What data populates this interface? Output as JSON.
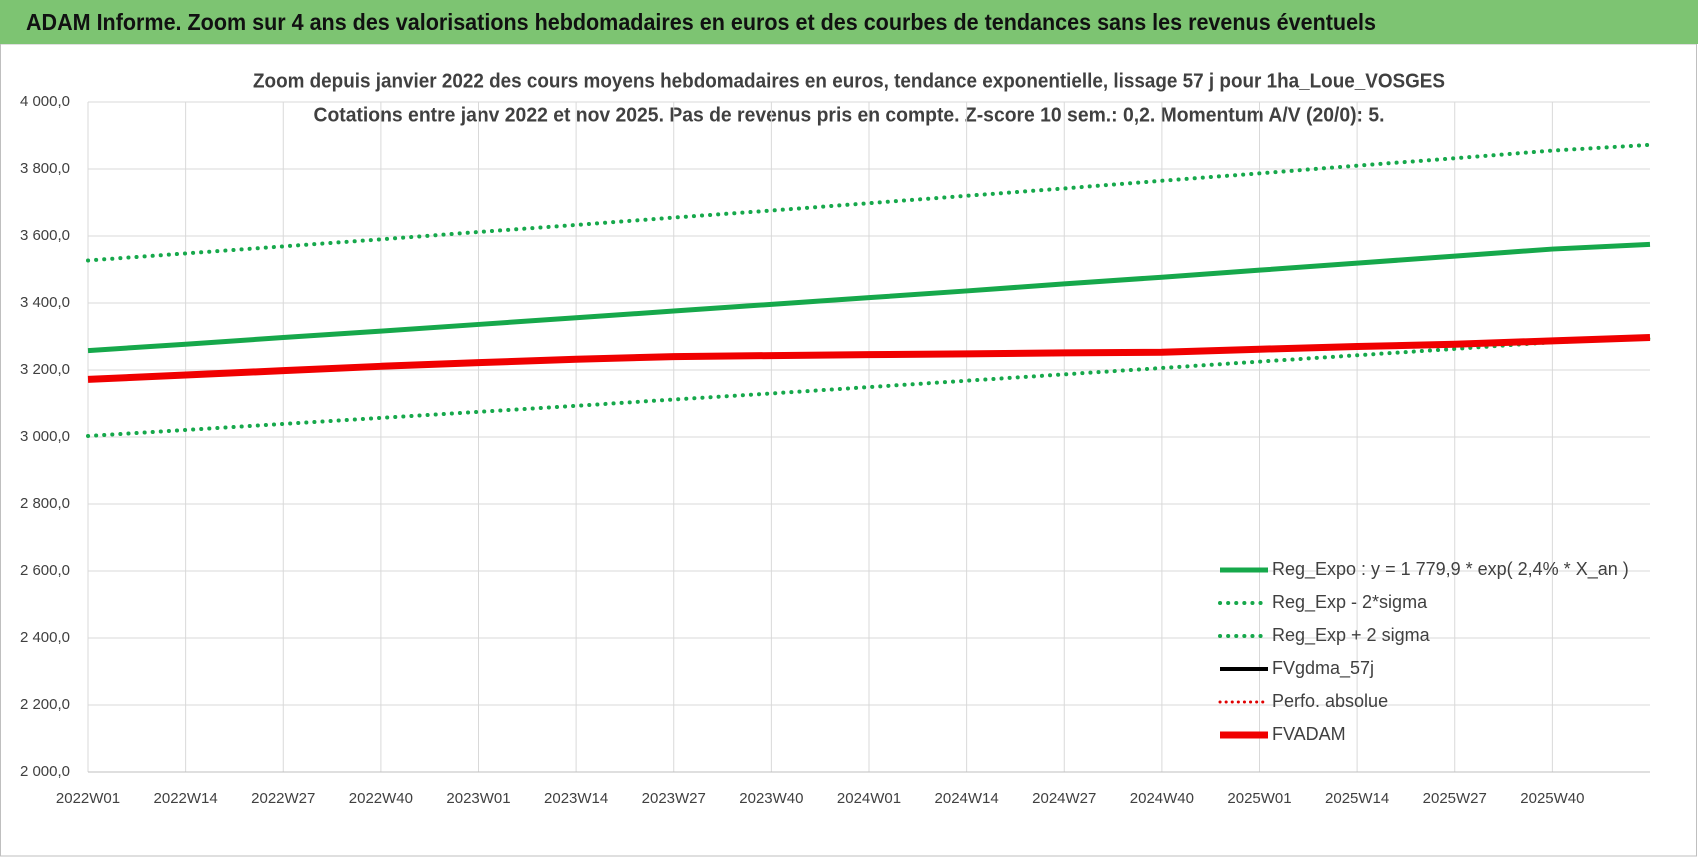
{
  "header": {
    "title": "ADAM Informe. Zoom sur 4 ans des valorisations hebdomadaires en euros et des courbes de tendances sans les revenus éventuels"
  },
  "chart_data": {
    "type": "line",
    "title": "Zoom depuis janvier 2022 des cours moyens hebdomadaires en euros, tendance exponentielle, lissage 57 j pour 1ha_Loue_VOSGES",
    "subtitle": "Cotations entre janv 2022 et nov 2025. Pas de revenus pris en compte. Z-score 10 sem.: 0,2. Momentum A/V (20/0): 5.",
    "categories": [
      "2022W01",
      "2022W14",
      "2022W27",
      "2022W40",
      "2023W01",
      "2023W14",
      "2023W27",
      "2023W40",
      "2024W01",
      "2024W14",
      "2024W27",
      "2024W40",
      "2025W01",
      "2025W14",
      "2025W27",
      "2025W40",
      null
    ],
    "ylim": [
      2000,
      4000
    ],
    "yticks": [
      {
        "value": 2000,
        "label": "2 000,0"
      },
      {
        "value": 2200,
        "label": "2 200,0"
      },
      {
        "value": 2400,
        "label": "2 400,0"
      },
      {
        "value": 2600,
        "label": "2 600,0"
      },
      {
        "value": 2800,
        "label": "2 800,0"
      },
      {
        "value": 3000,
        "label": "3 000,0"
      },
      {
        "value": 3200,
        "label": "3 200,0"
      },
      {
        "value": 3400,
        "label": "3 400,0"
      },
      {
        "value": 3600,
        "label": "3 600,0"
      },
      {
        "value": 3800,
        "label": "3 800,0"
      },
      {
        "value": 4000,
        "label": "4 000,0"
      }
    ],
    "grid": true,
    "legend": "bottom-right",
    "series": [
      {
        "name": "Reg_Expo : y = 1 779,9 * exp( 2,4% *  X_an )",
        "color": "#16a84b",
        "style": "solid",
        "width": 5,
        "values": [
          3258,
          3277,
          3297,
          3316,
          3336,
          3356,
          3376,
          3396,
          3416,
          3436,
          3457,
          3477,
          3498,
          3519,
          3540,
          3561,
          3575
        ]
      },
      {
        "name": "Reg_Exp - 2*sigma",
        "color": "#16a84b",
        "style": "dotted",
        "width": 4,
        "values": [
          3003,
          3021,
          3039,
          3057,
          3075,
          3093,
          3112,
          3130,
          3149,
          3168,
          3187,
          3206,
          3225,
          3244,
          3263,
          3283,
          3294
        ]
      },
      {
        "name": "Reg_Exp + 2 sigma",
        "color": "#16a84b",
        "style": "dotted",
        "width": 4,
        "values": [
          3527,
          3548,
          3569,
          3590,
          3612,
          3633,
          3655,
          3676,
          3698,
          3720,
          3742,
          3765,
          3787,
          3810,
          3832,
          3855,
          3872
        ]
      },
      {
        "name": "FVgdma_57j",
        "color": "#000000",
        "style": "solid",
        "width": 4,
        "values": [
          null,
          null,
          null,
          null,
          null,
          null,
          null,
          null,
          null,
          null,
          null,
          null,
          null,
          null,
          null,
          null,
          null
        ]
      },
      {
        "name": "Perfo. absolue",
        "color": "#e00000",
        "style": "dotted",
        "width": 3,
        "values": [
          null,
          null,
          null,
          null,
          null,
          null,
          null,
          null,
          null,
          null,
          null,
          null,
          null,
          null,
          null,
          null,
          null
        ]
      },
      {
        "name": "FVADAM",
        "color": "#f00000",
        "style": "solid",
        "width": 7,
        "values": [
          3172,
          3185,
          3198,
          3211,
          3222,
          3232,
          3240,
          3243,
          3246,
          3248,
          3251,
          3253,
          3262,
          3270,
          3277,
          3287,
          3297
        ]
      }
    ]
  }
}
